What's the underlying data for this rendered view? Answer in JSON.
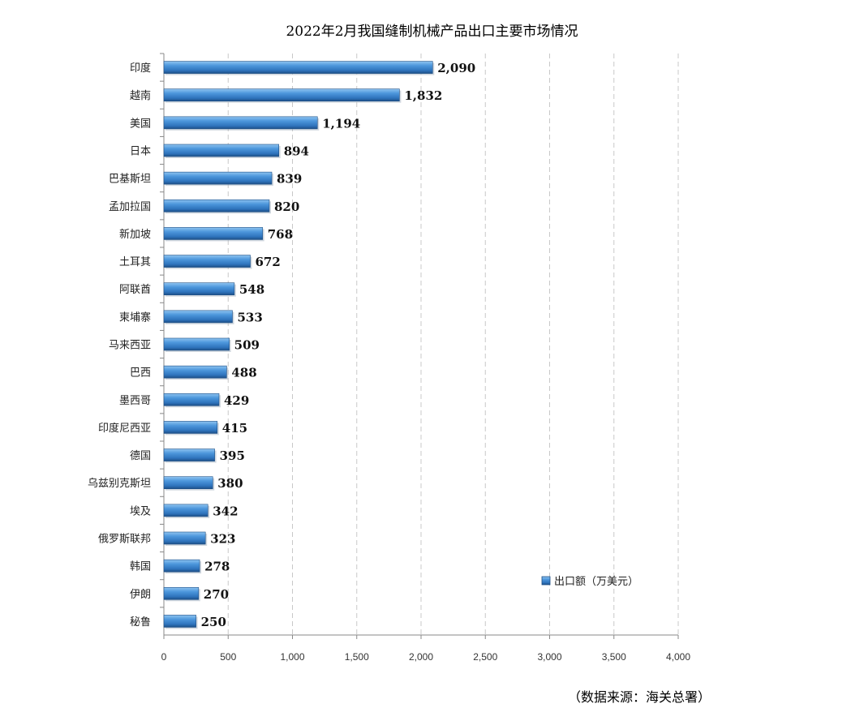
{
  "chart_data": {
    "type": "bar",
    "orientation": "horizontal",
    "title": "2022年2月我国缝制机械产品出口主要市场情况",
    "categories": [
      "印度",
      "越南",
      "美国",
      "日本",
      "巴基斯坦",
      "孟加拉国",
      "新加坡",
      "土耳其",
      "阿联酋",
      "柬埔寨",
      "马来西亚",
      "巴西",
      "墨西哥",
      "印度尼西亚",
      "德国",
      "乌兹别克斯坦",
      "埃及",
      "俄罗斯联邦",
      "韩国",
      "伊朗",
      "秘鲁"
    ],
    "series": [
      {
        "name": "出口额（万美元）",
        "values": [
          2090,
          1832,
          1194,
          894,
          839,
          820,
          768,
          672,
          548,
          533,
          509,
          488,
          429,
          415,
          395,
          380,
          342,
          323,
          278,
          270,
          250
        ],
        "value_labels": [
          "2,090",
          "1,832",
          "1,194",
          "894",
          "839",
          "820",
          "768",
          "672",
          "548",
          "533",
          "509",
          "488",
          "429",
          "415",
          "395",
          "380",
          "342",
          "323",
          "278",
          "270",
          "250"
        ]
      }
    ],
    "xlim": [
      0,
      4000
    ],
    "xticks": [
      0,
      500,
      1000,
      1500,
      2000,
      2500,
      3000,
      3500,
      4000
    ],
    "xtick_labels": [
      "0",
      "500",
      "1,000",
      "1,500",
      "2,000",
      "2,500",
      "3,000",
      "3,500",
      "4,000"
    ],
    "grid": "vertical dashed",
    "legend": "bottom-right",
    "bar_color": "#3f86cc",
    "bar_highlight": "#8fc4f0",
    "bar_shadow": "#1d4f86"
  },
  "source_note": "（数据来源：海关总署）"
}
